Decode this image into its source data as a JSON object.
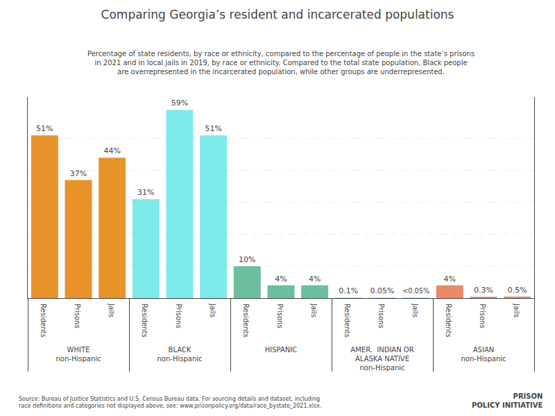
{
  "chart_data": {
    "type": "bar",
    "title": "Comparing Georgia’s resident and incarcerated populations",
    "subtitle": "Percentage of state residents, by race or ethnicity, compared to the percentage of people in the state’s prisons\nin 2021 and in local jails in 2019, by race or ethnicity. Compared to the total state population, Black people\nare overrepresented in the incarcerated population, while other groups are underrepresented.",
    "annotations": [
      "Source: Bureau of Justice Statistics and U.S. Census Bureau data. For sourcing details and dataset, including\nrace definitions and categories not displayed above, see: www.prisonpolicy.org/data/race_bystate_2021.xlsx.",
      "PRISON\nPOLICY INITIATIVE"
    ],
    "categories": [
      "Residents",
      "Prisons",
      "Jails"
    ],
    "series": [
      {
        "name": "WHITE\nnon-Hispanic",
        "color": "#E8922A",
        "values": [
          51,
          37,
          44
        ],
        "value_labels": [
          "51%",
          "37%",
          "44%"
        ]
      },
      {
        "name": "BLACK\nnon-Hispanic",
        "color": "#7EEAEA",
        "values": [
          31,
          59,
          51
        ],
        "value_labels": [
          "31%",
          "59%",
          "51%"
        ]
      },
      {
        "name": "HISPANIC",
        "color": "#6BBF9E",
        "values": [
          10,
          4,
          4
        ],
        "value_labels": [
          "10%",
          "4%",
          "4%"
        ]
      },
      {
        "name": "AMER.  INDIAN OR\nALASKA NATIVE\nnon-Hispanic",
        "color": "#7EEAEA",
        "values": [
          0.1,
          0.05,
          0.02
        ],
        "value_labels": [
          "0.1%",
          "0.05%",
          "<0.05%"
        ]
      },
      {
        "name": "ASIAN\nnon-Hispanic",
        "color": "#E8896A",
        "values": [
          4,
          0.3,
          0.5
        ],
        "value_labels": [
          "4%",
          "0.3%",
          "0.5%"
        ]
      }
    ],
    "ylim": [
      0,
      63
    ],
    "yticks": [
      10,
      20,
      30,
      40,
      50
    ],
    "grid": true,
    "data_labels": true,
    "tick_labels": "x"
  }
}
